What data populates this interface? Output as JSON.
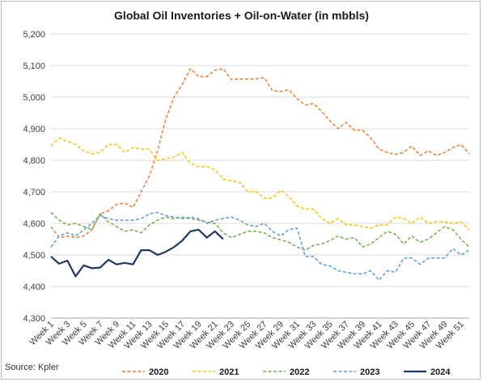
{
  "chart_data": {
    "type": "line",
    "title": "Global Oil Inventories + Oil-on-Water (in mbbls)",
    "source": "Source: Kpler",
    "ylim": [
      4300,
      5200
    ],
    "yticks": [
      4300,
      4400,
      4500,
      4600,
      4700,
      4800,
      4900,
      5000,
      5100,
      5200
    ],
    "ytick_labels": [
      "4,300",
      "4,400",
      "4,500",
      "4,600",
      "4,700",
      "4,800",
      "4,900",
      "5,000",
      "5,100",
      "5,200"
    ],
    "x_range": [
      1,
      52
    ],
    "xtick_labels": [
      "Week 1",
      "Week 3",
      "Week 5",
      "Week 7",
      "Week 9",
      "Week 11",
      "Week 13",
      "Week 15",
      "Week 17",
      "Week 19",
      "Week 21",
      "Week 23",
      "Week 25",
      "Week 27",
      "Week 29",
      "Week 31",
      "Week 33",
      "Week 35",
      "Week 37",
      "Week 39",
      "Week 41",
      "Week 43",
      "Week 45",
      "Week 47",
      "Week 49",
      "Week 51"
    ],
    "grid": true,
    "legend_position": "bottom",
    "series": [
      {
        "name": "2020",
        "color": "#ED7D31",
        "dashed": true,
        "values": [
          4590,
          4555,
          4560,
          4555,
          4560,
          4580,
          4630,
          4640,
          4660,
          4665,
          4650,
          4700,
          4750,
          4830,
          4930,
          5000,
          5040,
          5090,
          5065,
          5065,
          5085,
          5090,
          5055,
          5058,
          5057,
          5058,
          5062,
          5020,
          5018,
          5023,
          4995,
          4975,
          4980,
          4955,
          4925,
          4900,
          4920,
          4895,
          4895,
          4870,
          4835,
          4825,
          4818,
          4825,
          4845,
          4815,
          4830,
          4815,
          4825,
          4840,
          4850,
          4820
        ]
      },
      {
        "name": "2021",
        "color": "#FFC000",
        "dashed": true,
        "values": [
          4845,
          4870,
          4860,
          4850,
          4830,
          4820,
          4825,
          4850,
          4850,
          4825,
          4840,
          4835,
          4835,
          4800,
          4805,
          4810,
          4825,
          4790,
          4780,
          4780,
          4770,
          4740,
          4735,
          4730,
          4700,
          4700,
          4680,
          4680,
          4705,
          4685,
          4655,
          4645,
          4645,
          4615,
          4600,
          4615,
          4595,
          4595,
          4590,
          4585,
          4595,
          4595,
          4620,
          4615,
          4600,
          4620,
          4600,
          4605,
          4605,
          4600,
          4605,
          4580
        ]
      },
      {
        "name": "2022",
        "color": "#70AD47",
        "dashed": true,
        "values": [
          4635,
          4610,
          4595,
          4600,
          4590,
          4580,
          4630,
          4605,
          4590,
          4575,
          4580,
          4570,
          4595,
          4610,
          4620,
          4615,
          4620,
          4615,
          4610,
          4605,
          4600,
          4570,
          4555,
          4565,
          4575,
          4575,
          4570,
          4555,
          4548,
          4540,
          4525,
          4515,
          4530,
          4535,
          4545,
          4560,
          4550,
          4555,
          4525,
          4535,
          4555,
          4575,
          4565,
          4535,
          4560,
          4540,
          4550,
          4570,
          4590,
          4580,
          4550,
          4525
        ]
      },
      {
        "name": "2023",
        "color": "#5B9BD5",
        "dashed": true,
        "values": [
          4525,
          4560,
          4570,
          4560,
          4580,
          4600,
          4625,
          4615,
          4610,
          4610,
          4610,
          4615,
          4630,
          4635,
          4625,
          4620,
          4615,
          4620,
          4615,
          4600,
          4610,
          4615,
          4620,
          4610,
          4595,
          4590,
          4600,
          4575,
          4560,
          4580,
          4585,
          4495,
          4495,
          4470,
          4465,
          4450,
          4445,
          4440,
          4440,
          4450,
          4420,
          4450,
          4445,
          4490,
          4490,
          4470,
          4490,
          4490,
          4490,
          4520,
          4500,
          4515
        ]
      },
      {
        "name": "2024",
        "color": "#1F3864",
        "dashed": false,
        "values": [
          4495,
          4472,
          4482,
          4432,
          4467,
          4458,
          4460,
          4485,
          4470,
          4475,
          4470,
          4515,
          4515,
          4500,
          4510,
          4525,
          4545,
          4575,
          4580,
          4555,
          4575,
          4550
        ]
      }
    ]
  }
}
